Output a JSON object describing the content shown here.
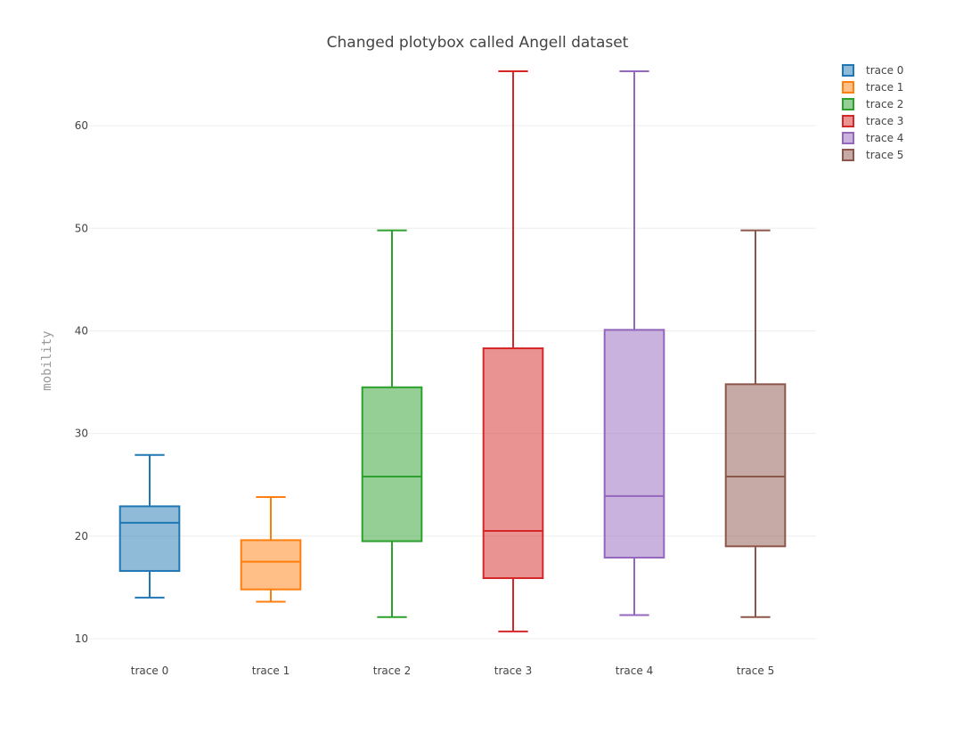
{
  "chart_data": {
    "type": "box",
    "title": "Changed plotybox called Angell dataset",
    "xlabel": "",
    "ylabel": "mobility",
    "ylim": [
      8,
      66
    ],
    "yticks": [
      10,
      20,
      30,
      40,
      50,
      60
    ],
    "grid": true,
    "legend": "top-right",
    "categories": [
      "trace 0",
      "trace 1",
      "trace 2",
      "trace 3",
      "trace 4",
      "trace 5"
    ],
    "series": [
      {
        "name": "trace 0",
        "color": "#1f77b4",
        "min": 14.0,
        "q1": 16.6,
        "median": 21.3,
        "q3": 22.9,
        "max": 27.9
      },
      {
        "name": "trace 1",
        "color": "#ff7f0e",
        "min": 13.6,
        "q1": 14.8,
        "median": 17.5,
        "q3": 19.6,
        "max": 23.8
      },
      {
        "name": "trace 2",
        "color": "#2ca02c",
        "min": 12.1,
        "q1": 19.5,
        "median": 25.8,
        "q3": 34.5,
        "max": 49.8
      },
      {
        "name": "trace 3",
        "color": "#d62728",
        "min": 10.7,
        "q1": 15.9,
        "median": 20.5,
        "q3": 38.3,
        "max": 65.3
      },
      {
        "name": "trace 4",
        "color": "#9467bd",
        "min": 12.3,
        "q1": 17.9,
        "median": 23.9,
        "q3": 40.1,
        "max": 65.3
      },
      {
        "name": "trace 5",
        "color": "#8c564b",
        "min": 12.1,
        "q1": 19.0,
        "median": 25.8,
        "q3": 34.8,
        "max": 49.8
      }
    ]
  }
}
